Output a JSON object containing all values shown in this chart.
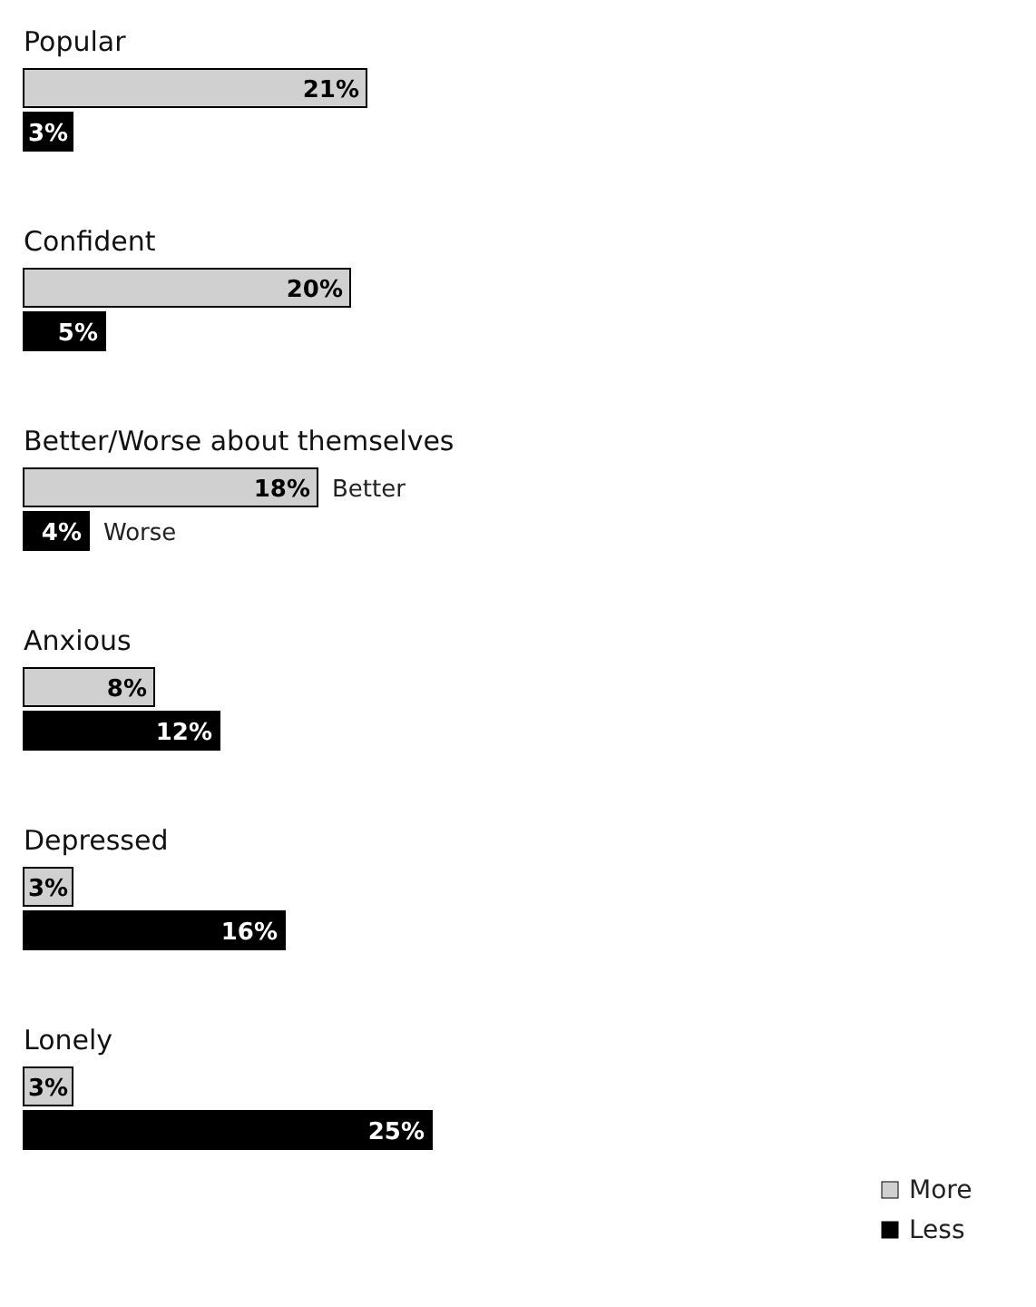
{
  "chart_data": {
    "type": "bar",
    "orientation": "horizontal",
    "categories": [
      "Popular",
      "Confident",
      "Better/Worse about themselves",
      "Anxious",
      "Depressed",
      "Lonely"
    ],
    "series": [
      {
        "name": "More",
        "color": "#d0d0d0",
        "values": [
          21,
          20,
          18,
          8,
          3,
          3
        ],
        "value_labels": [
          "21%",
          "20%",
          "18%",
          "8%",
          "3%",
          "3%"
        ]
      },
      {
        "name": "Less",
        "color": "#000000",
        "values": [
          3,
          5,
          4,
          12,
          16,
          25
        ],
        "value_labels": [
          "3%",
          "5%",
          "4%",
          "12%",
          "16%",
          "25%"
        ]
      }
    ],
    "legend": "bottom right",
    "annotations": [
      "Better",
      "Worse"
    ]
  }
}
